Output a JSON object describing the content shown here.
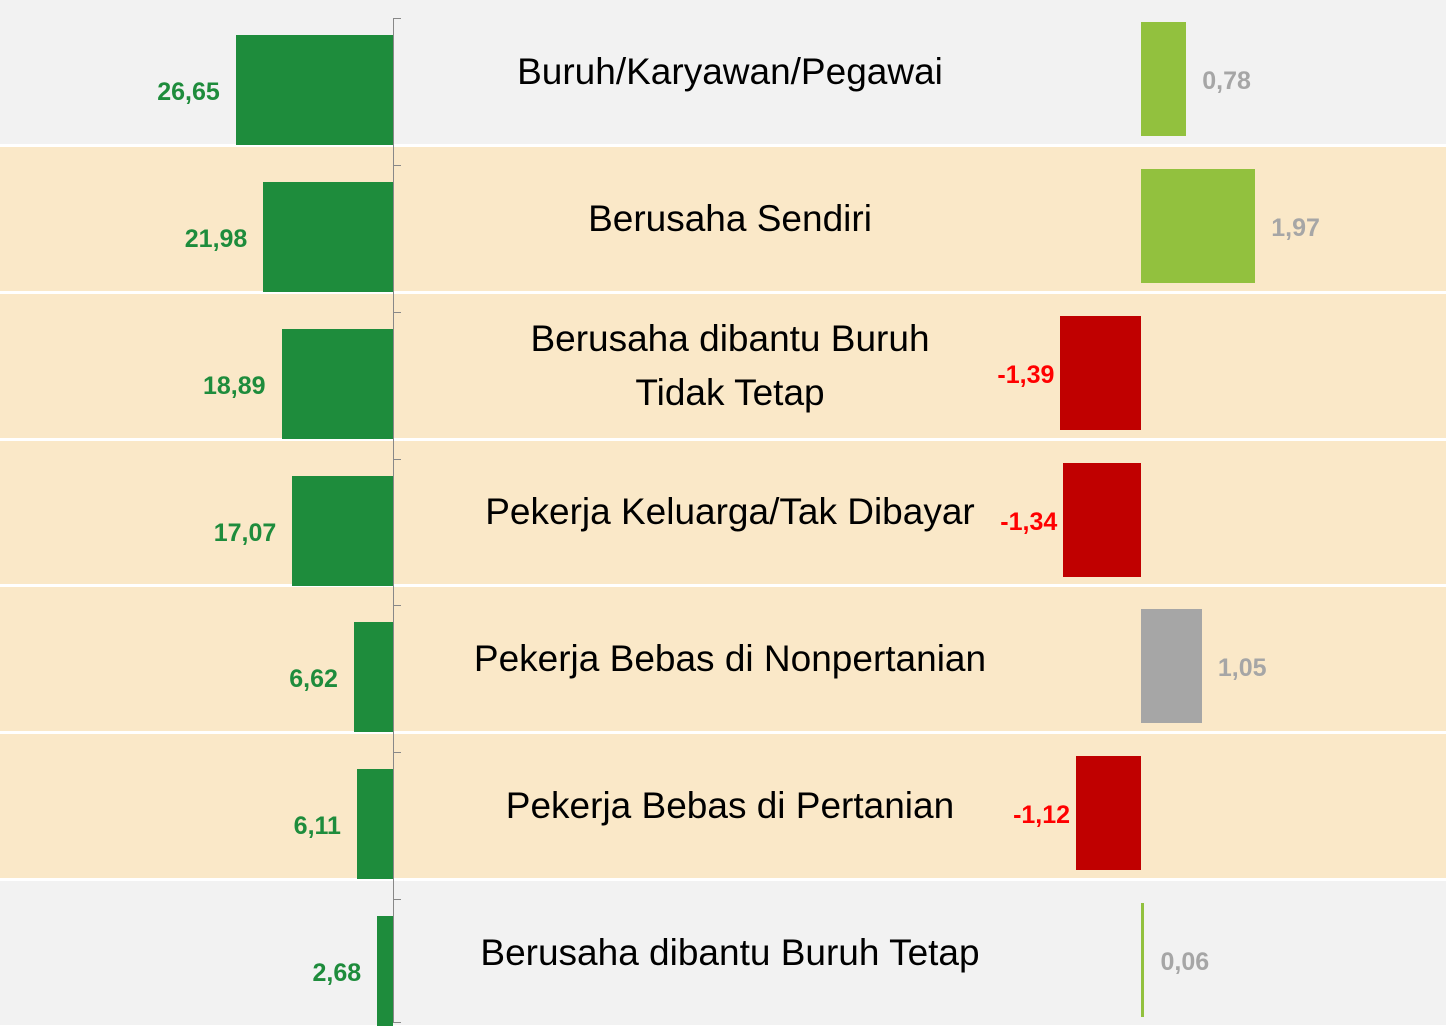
{
  "chart_data": {
    "type": "bar",
    "categories": [
      "Buruh/Karyawan/Pegawai",
      "Berusaha Sendiri",
      "Berusaha dibantu Buruh\nTidak Tetap",
      "Pekerja Keluarga/Tak Dibayar",
      "Pekerja Bebas di Nonpertanian",
      "Pekerja Bebas di Pertanian",
      "Berusaha dibantu Buruh Tetap"
    ],
    "row_colors": [
      "#f2f2f2",
      "#fae8c8",
      "#fae8c8",
      "#fae8c8",
      "#fae8c8",
      "#fae8c8",
      "#f2f2f2"
    ],
    "series": [
      {
        "color": "#1e8c3c",
        "values": [
          26.65,
          21.98,
          18.89,
          17.07,
          6.62,
          6.11,
          2.68
        ],
        "value_labels": [
          "26,65",
          "21,98",
          "18,89",
          "17,07",
          "6,62",
          "6,11",
          "2,68"
        ]
      },
      {
        "colors": [
          "#92c13e",
          "#92c13e",
          "#c00000",
          "#c00000",
          "#a6a6a6",
          "#c00000",
          "#92c13e"
        ],
        "label_colors": [
          "#a6a6a6",
          "#a6a6a6",
          "#ff0000",
          "#ff0000",
          "#a6a6a6",
          "#ff0000",
          "#a6a6a6"
        ],
        "values": [
          0.78,
          1.97,
          -1.39,
          -1.34,
          1.05,
          -1.12,
          0.06
        ],
        "value_labels": [
          "0,78",
          "1,97",
          "-1,39",
          "-1,34",
          "1,05",
          "-1,12",
          "0,06"
        ]
      }
    ]
  }
}
